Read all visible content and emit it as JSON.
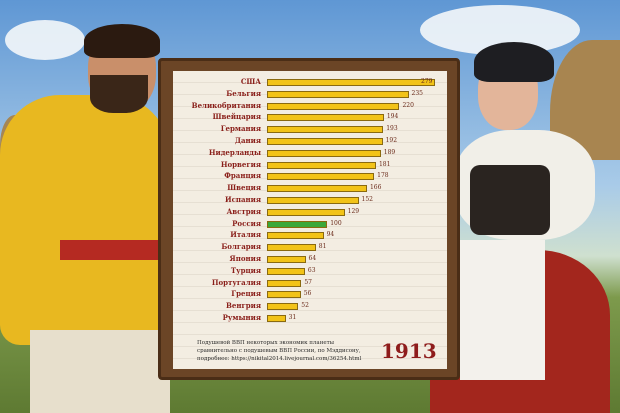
{
  "chart_data": {
    "type": "bar",
    "orientation": "horizontal",
    "title": "1913",
    "categories": [
      "США",
      "Бельгия",
      "Великобритания",
      "Швейцария",
      "Германия",
      "Дания",
      "Нидерланды",
      "Норвегия",
      "Франция",
      "Швеция",
      "Испания",
      "Австрия",
      "Россия",
      "Италия",
      "Болгария",
      "Япония",
      "Турция",
      "Португалия",
      "Греция",
      "Венгрия",
      "Румыния"
    ],
    "values": [
      279,
      235,
      220,
      194,
      193,
      192,
      189,
      181,
      178,
      166,
      152,
      129,
      100,
      94,
      81,
      64,
      63,
      57,
      56,
      52,
      31
    ],
    "highlight": "Россия",
    "colors": {
      "bar": "#f2c318",
      "highlight": "#3aa83a",
      "label": "#8a1f1a"
    },
    "note": [
      "Подушевой ВВП некоторых экономик планеты",
      "сравнительно с подушевым ВВП России, по Мэддисону,",
      "подробнее: https://nikital2014.livejournal.com/36254.html"
    ]
  }
}
